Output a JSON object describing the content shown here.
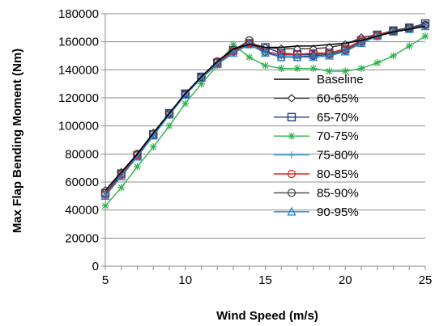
{
  "chart_data": {
    "type": "line",
    "title": "",
    "xlabel": "Wind Speed (m/s)",
    "ylabel": "Max Flap Bending Moment (Nm)",
    "xlim": [
      5,
      25
    ],
    "ylim": [
      0,
      180000
    ],
    "xticks": [
      5,
      10,
      15,
      20,
      25
    ],
    "yticks": [
      0,
      20000,
      40000,
      60000,
      80000,
      100000,
      120000,
      140000,
      160000,
      180000
    ],
    "grid": "horizontal",
    "legend_position": "bottom-right",
    "x": [
      5,
      6,
      7,
      8,
      9,
      10,
      11,
      12,
      13,
      14,
      15,
      16,
      17,
      18,
      19,
      20,
      21,
      22,
      23,
      24,
      25
    ],
    "series": [
      {
        "name": "Baseline",
        "color": "#000000",
        "marker": "none",
        "values": [
          54000,
          67000,
          80000,
          95000,
          109000,
          123000,
          135000,
          146000,
          155000,
          158000,
          156000,
          156000,
          157000,
          157000,
          158000,
          159000,
          161000,
          164000,
          167000,
          169000,
          171000
        ]
      },
      {
        "name": "60-65%",
        "color": "#333333",
        "marker": "diamond",
        "values": [
          54000,
          67000,
          80000,
          95000,
          109000,
          123000,
          135000,
          146000,
          155000,
          159000,
          156000,
          155000,
          155000,
          155000,
          156000,
          158000,
          163000,
          165000,
          168000,
          170000,
          172000
        ]
      },
      {
        "name": "65-70%",
        "color": "#1f3a8a",
        "marker": "square",
        "values": [
          52000,
          66000,
          79000,
          94000,
          109000,
          123000,
          135000,
          145000,
          154000,
          159000,
          156000,
          152000,
          151000,
          151000,
          152000,
          155000,
          161000,
          165000,
          168000,
          170000,
          173000
        ]
      },
      {
        "name": "70-75%",
        "color": "#2db34a",
        "marker": "star",
        "values": [
          43000,
          56000,
          71000,
          85000,
          100000,
          116000,
          130000,
          143000,
          158000,
          149000,
          143000,
          141000,
          141000,
          141000,
          139000,
          139000,
          141000,
          145000,
          150000,
          157000,
          164000
        ]
      },
      {
        "name": "75-80%",
        "color": "#2aa5e0",
        "marker": "plus",
        "values": [
          50000,
          64000,
          78000,
          93000,
          108000,
          122000,
          134000,
          144000,
          152000,
          158000,
          152000,
          150000,
          150000,
          150000,
          151000,
          153000,
          160000,
          164000,
          167000,
          170000,
          172000
        ]
      },
      {
        "name": "80-85%",
        "color": "#e02020",
        "marker": "circle",
        "values": [
          51000,
          65000,
          79000,
          94000,
          108000,
          123000,
          135000,
          145000,
          153000,
          159000,
          153000,
          151000,
          151000,
          152000,
          152000,
          155000,
          161000,
          165000,
          168000,
          170000,
          172000
        ]
      },
      {
        "name": "85-90%",
        "color": "#444444",
        "marker": "circle",
        "values": [
          52000,
          66000,
          80000,
          94000,
          109000,
          123000,
          135000,
          146000,
          154000,
          161000,
          153000,
          149000,
          149000,
          150000,
          151000,
          154000,
          160000,
          164000,
          168000,
          170000,
          172000
        ]
      },
      {
        "name": "90-95%",
        "color": "#2a7fd4",
        "marker": "triangle",
        "values": [
          50000,
          64000,
          78000,
          93000,
          108000,
          122000,
          134000,
          144000,
          152000,
          158000,
          152000,
          149000,
          149000,
          149000,
          150000,
          153000,
          159000,
          164000,
          167000,
          169000,
          171000
        ]
      }
    ]
  }
}
